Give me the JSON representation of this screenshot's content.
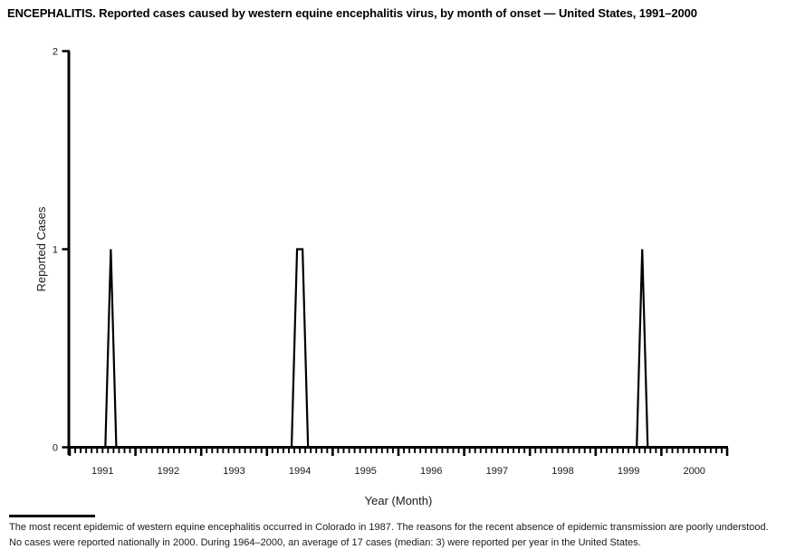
{
  "page": {
    "title": "ENCEPHALITIS. Reported cases caused by western equine encephalitis virus, by month of onset — United States, 1991–2000",
    "footnote": "The most recent epidemic of western equine encephalitis occurred in Colorado in 1987. The reasons for the recent absence of epidemic transmission are poorly understood. No cases were reported nationally in 2000. During 1964–2000, an average of 17 cases (median: 3) were reported per year in the United States."
  },
  "chart_data": {
    "type": "line",
    "title": "ENCEPHALITIS. Reported cases caused by western equine encephalitis virus, by month of onset — United States, 1991–2000",
    "xlabel": "Year (Month)",
    "ylabel": "Reported Cases",
    "ylim": [
      0,
      2
    ],
    "yticks": [
      "0",
      "1",
      "2"
    ],
    "x_unit": "month",
    "years": [
      "1991",
      "1992",
      "1993",
      "1994",
      "1995",
      "1996",
      "1997",
      "1998",
      "1999",
      "2000"
    ],
    "months_per_year": 12,
    "grid": false,
    "legend": "none",
    "line_color": "#000000",
    "axis_color": "#000000",
    "series": [
      {
        "name": "Reported cases",
        "monthly_values_by_year": {
          "1991": [
            0,
            0,
            0,
            0,
            0,
            0,
            0,
            1,
            0,
            0,
            0,
            0
          ],
          "1992": [
            0,
            0,
            0,
            0,
            0,
            0,
            0,
            0,
            0,
            0,
            0,
            0
          ],
          "1993": [
            0,
            0,
            0,
            0,
            0,
            0,
            0,
            0,
            0,
            0,
            0,
            0
          ],
          "1994": [
            0,
            0,
            0,
            0,
            0,
            1,
            1,
            0,
            0,
            0,
            0,
            0
          ],
          "1995": [
            0,
            0,
            0,
            0,
            0,
            0,
            0,
            0,
            0,
            0,
            0,
            0
          ],
          "1996": [
            0,
            0,
            0,
            0,
            0,
            0,
            0,
            0,
            0,
            0,
            0,
            0
          ],
          "1997": [
            0,
            0,
            0,
            0,
            0,
            0,
            0,
            0,
            0,
            0,
            0,
            0
          ],
          "1998": [
            0,
            0,
            0,
            0,
            0,
            0,
            0,
            0,
            0,
            0,
            0,
            0
          ],
          "1999": [
            0,
            0,
            0,
            0,
            0,
            0,
            0,
            0,
            1,
            0,
            0,
            0
          ],
          "2000": [
            0,
            0,
            0,
            0,
            0,
            0,
            0,
            0,
            0,
            0,
            0,
            0
          ]
        }
      }
    ],
    "nonzero_points": [
      {
        "year": "1991",
        "month": "Aug",
        "cases": 1
      },
      {
        "year": "1994",
        "month": "Jun",
        "cases": 1
      },
      {
        "year": "1994",
        "month": "Jul",
        "cases": 1
      },
      {
        "year": "1999",
        "month": "Sep",
        "cases": 1
      }
    ]
  }
}
